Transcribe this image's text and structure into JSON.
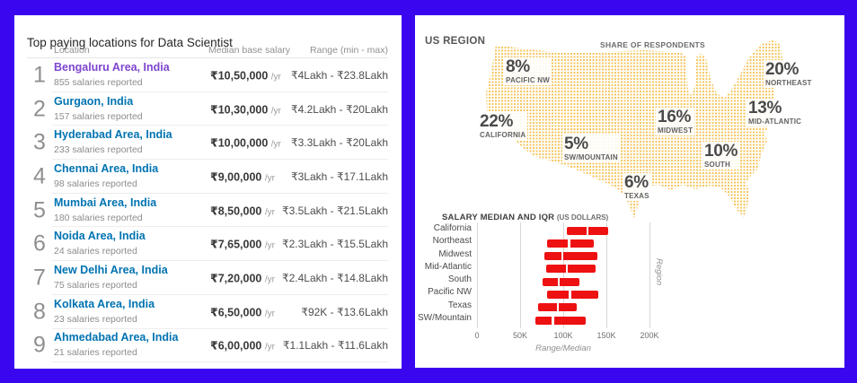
{
  "background_color": "#3a06f0",
  "left_card": {
    "title": "Top paying locations for Data Scientist",
    "columns": {
      "location": "Location",
      "median": "Median base salary",
      "range": "Range (min - max)"
    },
    "link_color": "#0073b1",
    "visited_link_color": "#7d45cf",
    "rows": [
      {
        "rank": "1",
        "location": "Bengaluru Area, India",
        "sub": "855 salaries reported",
        "median": "₹10,50,000",
        "per": "/yr",
        "range": "₹4Lakh - ₹23.8Lakh",
        "visited": true
      },
      {
        "rank": "2",
        "location": "Gurgaon, India",
        "sub": "157 salaries reported",
        "median": "₹10,30,000",
        "per": "/yr",
        "range": "₹4.2Lakh - ₹20Lakh",
        "visited": false
      },
      {
        "rank": "3",
        "location": "Hyderabad Area, India",
        "sub": "233 salaries reported",
        "median": "₹10,00,000",
        "per": "/yr",
        "range": "₹3.3Lakh - ₹20Lakh",
        "visited": false
      },
      {
        "rank": "4",
        "location": "Chennai Area, India",
        "sub": "98 salaries reported",
        "median": "₹9,00,000",
        "per": "/yr",
        "range": "₹3Lakh - ₹17.1Lakh",
        "visited": false
      },
      {
        "rank": "5",
        "location": "Mumbai Area, India",
        "sub": "180 salaries reported",
        "median": "₹8,50,000",
        "per": "/yr",
        "range": "₹3.5Lakh - ₹21.5Lakh",
        "visited": false
      },
      {
        "rank": "6",
        "location": "Noida Area, India",
        "sub": "24 salaries reported",
        "median": "₹7,65,000",
        "per": "/yr",
        "range": "₹2.3Lakh - ₹15.5Lakh",
        "visited": false
      },
      {
        "rank": "7",
        "location": "New Delhi Area, India",
        "sub": "75 salaries reported",
        "median": "₹7,20,000",
        "per": "/yr",
        "range": "₹2.4Lakh - ₹14.8Lakh",
        "visited": false
      },
      {
        "rank": "8",
        "location": "Kolkata Area, India",
        "sub": "23 salaries reported",
        "median": "₹6,50,000",
        "per": "/yr",
        "range": "₹92K - ₹13.6Lakh",
        "visited": false
      },
      {
        "rank": "9",
        "location": "Ahmedabad Area, India",
        "sub": "21 salaries reported",
        "median": "₹6,00,000",
        "per": "/yr",
        "range": "₹1.1Lakh - ₹11.6Lakh",
        "visited": false
      }
    ]
  },
  "right_card": {
    "title": "US REGION",
    "chart_title_main": "SALARY MEDIAN AND IQR",
    "chart_title_note": "(US DOLLARS)",
    "map": {
      "heading": "SHARE OF RESPONDENTS",
      "dot_color": "#f5c65e",
      "regions": [
        {
          "pct": "8%",
          "name": "PACIFIC NW"
        },
        {
          "pct": "20%",
          "name": "NORTHEAST"
        },
        {
          "pct": "22%",
          "name": "CALIFORNIA"
        },
        {
          "pct": "13%",
          "name": "MID-ATLANTIC"
        },
        {
          "pct": "16%",
          "name": "MIDWEST"
        },
        {
          "pct": "5%",
          "name": "SW/MOUNTAIN"
        },
        {
          "pct": "10%",
          "name": "SOUTH"
        },
        {
          "pct": "6%",
          "name": "TEXAS"
        }
      ]
    }
  },
  "chart_data": [
    {
      "type": "table",
      "title": "SHARE OF RESPONDENTS",
      "categories": [
        "Pacific NW",
        "Northeast",
        "California",
        "Mid-Atlantic",
        "Midwest",
        "SW/Mountain",
        "South",
        "Texas"
      ],
      "values": [
        8,
        20,
        22,
        13,
        16,
        5,
        10,
        6
      ],
      "units": "percent of respondents"
    },
    {
      "type": "bar",
      "orientation": "horizontal",
      "title": "SALARY MEDIAN AND IQR (US DOLLARS)",
      "categories": [
        "California",
        "Northeast",
        "Midwest",
        "Mid-Atlantic",
        "South",
        "Pacific NW",
        "Texas",
        "SW/Mountain"
      ],
      "series": [
        {
          "name": "q1_k_usd",
          "values": [
            104,
            81,
            78,
            80,
            76,
            81,
            71,
            68
          ]
        },
        {
          "name": "median_k_usd",
          "values": [
            128,
            107,
            99,
            104,
            95,
            108,
            94,
            88
          ]
        },
        {
          "name": "q3_k_usd",
          "values": [
            152,
            135,
            140,
            137,
            119,
            141,
            116,
            126
          ]
        }
      ],
      "xlabel": "Range/Median",
      "ylabel": "Region",
      "x_ticks": [
        "0",
        "50K",
        "100K",
        "150K",
        "200K"
      ],
      "x_tick_values_k": [
        0,
        50,
        100,
        150,
        200
      ],
      "xlim_k": [
        0,
        215
      ],
      "grid": "vertical",
      "bar_color": "#ee1111"
    }
  ]
}
